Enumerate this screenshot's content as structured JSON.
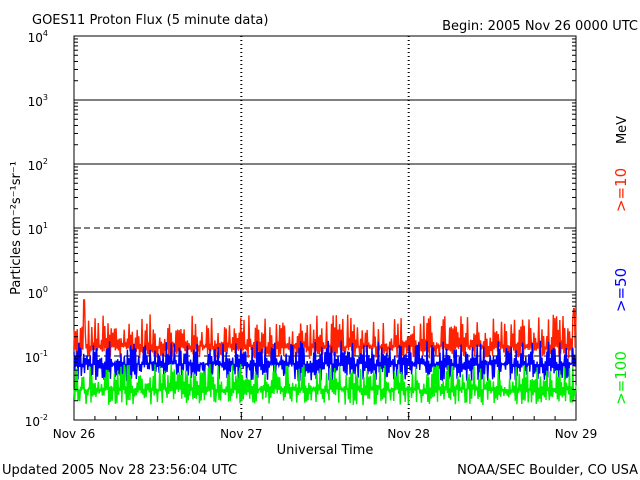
{
  "chart_data": {
    "type": "line",
    "title": "GOES11 Proton Flux (5 minute data)",
    "begin_label": "Begin: 2005 Nov 26 0000 UTC",
    "ylabel": "Particles cm⁻²s⁻¹sr⁻¹",
    "xlabel": "Universal Time",
    "y_scale": "log",
    "ylim": [
      0.01,
      10000
    ],
    "y_ticks": [
      {
        "base": "10",
        "exp": "4",
        "value": 10000
      },
      {
        "base": "10",
        "exp": "3",
        "value": 1000
      },
      {
        "base": "10",
        "exp": "2",
        "value": 100
      },
      {
        "base": "10",
        "exp": "1",
        "value": 10
      },
      {
        "base": "10",
        "exp": "0",
        "value": 1
      },
      {
        "base": "10",
        "exp": "-1",
        "value": 0.1
      },
      {
        "base": "10",
        "exp": "-2",
        "value": 0.01
      }
    ],
    "x_ticks": [
      "Nov 26",
      "Nov 27",
      "Nov 28",
      "Nov 29"
    ],
    "x_range_days": [
      0,
      3
    ],
    "threshold_lines": [
      {
        "value": 1000,
        "style": "solid"
      },
      {
        "value": 100,
        "style": "solid"
      },
      {
        "value": 10,
        "style": "dashed"
      },
      {
        "value": 1,
        "style": "solid"
      },
      {
        "value": 0.1,
        "style": "dashed"
      }
    ],
    "unit_label": "MeV",
    "series": [
      {
        "name": ">=10",
        "color": "#ff2200",
        "baseline": 0.14,
        "spread_low": 0.09,
        "spread_high": 0.45,
        "spikes": [
          {
            "day": 0.06,
            "value": 0.75
          },
          {
            "day": 2.99,
            "value": 0.55
          }
        ]
      },
      {
        "name": ">=50",
        "color": "#0000ff",
        "baseline": 0.075,
        "spread_low": 0.04,
        "spread_high": 0.18
      },
      {
        "name": ">=100",
        "color": "#00ee00",
        "baseline": 0.03,
        "spread_low": 0.017,
        "spread_high": 0.075
      }
    ]
  },
  "footer": {
    "updated": "Updated 2005 Nov 28 23:56:04 UTC",
    "credit": "NOAA/SEC Boulder, CO USA"
  }
}
